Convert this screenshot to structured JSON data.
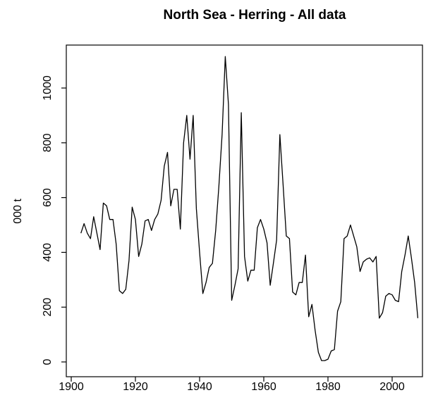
{
  "chart_data": {
    "type": "line",
    "title": "North Sea - Herring - All data",
    "xlabel": "",
    "ylabel": "000 t",
    "xlim": [
      1900,
      2010
    ],
    "ylim": [
      0,
      1110
    ],
    "x_ticks": [
      "1900",
      "1920",
      "1940",
      "1960",
      "1980",
      "2000"
    ],
    "y_ticks": [
      "0",
      "200",
      "400",
      "600",
      "800",
      "1000"
    ],
    "grid": false,
    "legend": "none",
    "line_color": "#000000",
    "series": [
      {
        "x": [
          1903,
          1904,
          1905,
          1906,
          1907,
          1908,
          1909,
          1910,
          1911,
          1912,
          1913,
          1914,
          1915,
          1916,
          1917,
          1918,
          1919,
          1920,
          1921,
          1922,
          1923,
          1924,
          1925,
          1926,
          1927,
          1928,
          1929,
          1930,
          1931,
          1932,
          1933,
          1934,
          1935,
          1936,
          1937,
          1938,
          1939,
          1940,
          1941,
          1942,
          1943,
          1944,
          1945,
          1946,
          1947,
          1948,
          1949,
          1950,
          1951,
          1952,
          1953,
          1954,
          1955,
          1956,
          1957,
          1958,
          1959,
          1960,
          1961,
          1962,
          1963,
          1964,
          1965,
          1966,
          1967,
          1968,
          1969,
          1970,
          1971,
          1972,
          1973,
          1974,
          1975,
          1976,
          1977,
          1978,
          1979,
          1980,
          1981,
          1982,
          1983,
          1984,
          1985,
          1986,
          1987,
          1988,
          1989,
          1990,
          1991,
          1992,
          1993,
          1994,
          1995,
          1996,
          1997,
          1998,
          1999,
          2000,
          2001,
          2002,
          2003,
          2004,
          2005,
          2006,
          2007,
          2008
        ],
        "y": [
          470,
          505,
          470,
          450,
          530,
          470,
          410,
          580,
          570,
          520,
          520,
          430,
          260,
          250,
          265,
          370,
          565,
          520,
          385,
          430,
          515,
          520,
          480,
          520,
          540,
          590,
          715,
          765,
          570,
          630,
          630,
          485,
          800,
          900,
          740,
          900,
          560,
          400,
          250,
          290,
          345,
          360,
          480,
          640,
          830,
          1115,
          940,
          225,
          280,
          340,
          910,
          385,
          295,
          335,
          335,
          490,
          520,
          485,
          435,
          280,
          360,
          445,
          830,
          650,
          460,
          450,
          255,
          245,
          290,
          290,
          390,
          165,
          210,
          115,
          35,
          5,
          5,
          10,
          40,
          45,
          185,
          220,
          450,
          460,
          500,
          460,
          420,
          330,
          365,
          375,
          380,
          365,
          385,
          160,
          180,
          240,
          250,
          245,
          225,
          220,
          330,
          390,
          460,
          380,
          290,
          160
        ]
      }
    ]
  }
}
